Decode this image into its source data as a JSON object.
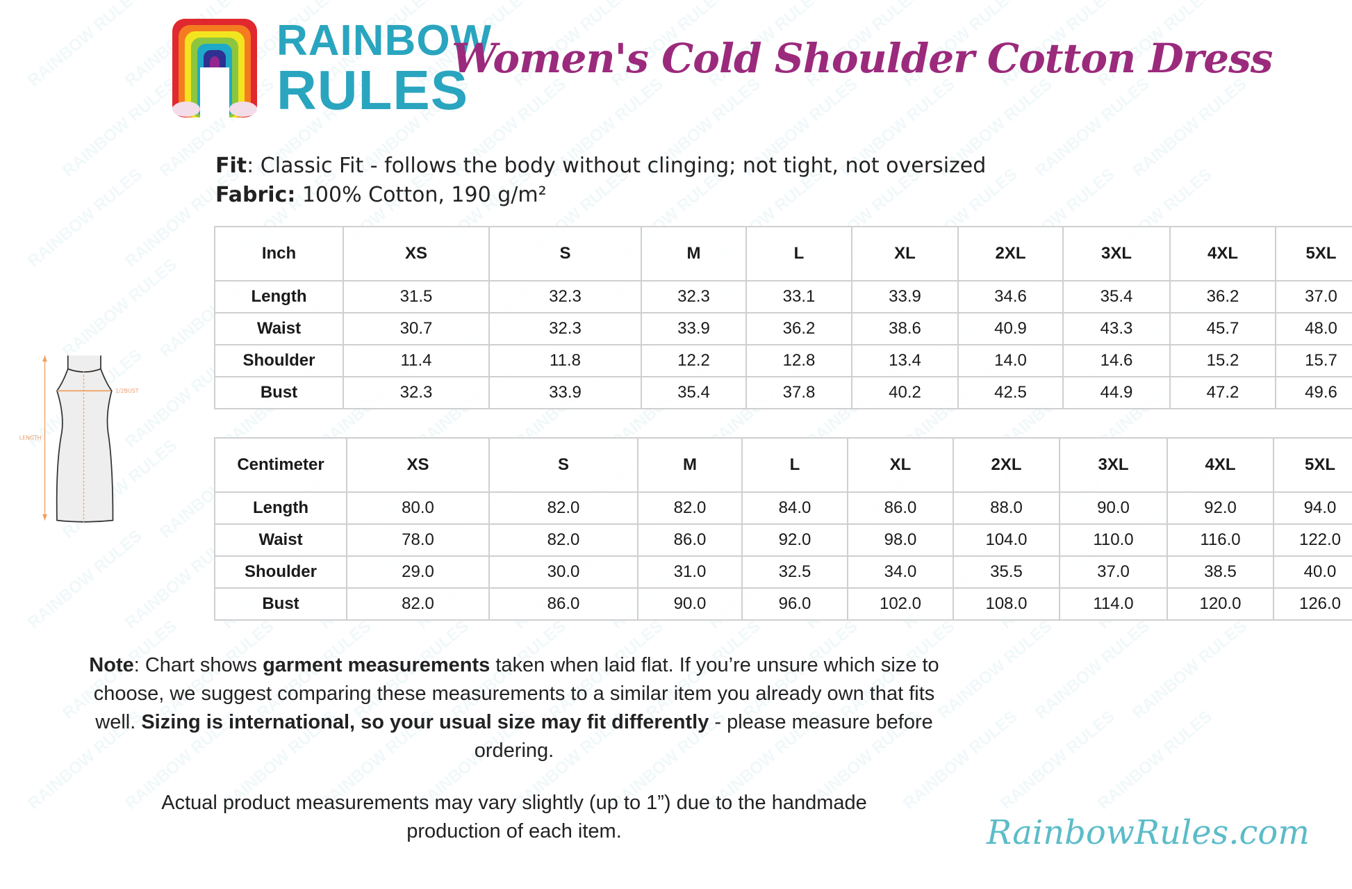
{
  "logo": {
    "text_line1": "RAINBOW",
    "text_line2": "RULES",
    "rainbow_colors": [
      "#e0282e",
      "#f47b20",
      "#f2e51f",
      "#8cc63f",
      "#1fa9c9",
      "#2e3192",
      "#93278f"
    ]
  },
  "title": "Women's Cold Shoulder Cotton Dress",
  "specs": {
    "fit_label": "Fit",
    "fit_value": ": Classic Fit - follows the body without clinging; not tight, not oversized",
    "fabric_label": "Fabric:",
    "fabric_value": " 100% Cotton, 190 g/m²"
  },
  "diagram": {
    "length_label": "LENGTH",
    "bust_label": "1/2BUST"
  },
  "inch_table": {
    "headers": [
      "Inch",
      "XS",
      "S",
      "M",
      "L",
      "XL",
      "2XL",
      "3XL",
      "4XL",
      "5XL"
    ],
    "rows": [
      [
        "Length",
        "31.5",
        "32.3",
        "32.3",
        "33.1",
        "33.9",
        "34.6",
        "35.4",
        "36.2",
        "37.0"
      ],
      [
        "Waist",
        "30.7",
        "32.3",
        "33.9",
        "36.2",
        "38.6",
        "40.9",
        "43.3",
        "45.7",
        "48.0"
      ],
      [
        "Shoulder",
        "11.4",
        "11.8",
        "12.2",
        "12.8",
        "13.4",
        "14.0",
        "14.6",
        "15.2",
        "15.7"
      ],
      [
        "Bust",
        "32.3",
        "33.9",
        "35.4",
        "37.8",
        "40.2",
        "42.5",
        "44.9",
        "47.2",
        "49.6"
      ]
    ]
  },
  "cm_table": {
    "headers": [
      "Centimeter",
      "XS",
      "S",
      "M",
      "L",
      "XL",
      "2XL",
      "3XL",
      "4XL",
      "5XL"
    ],
    "rows": [
      [
        "Length",
        "80.0",
        "82.0",
        "82.0",
        "84.0",
        "86.0",
        "88.0",
        "90.0",
        "92.0",
        "94.0"
      ],
      [
        "Waist",
        "78.0",
        "82.0",
        "86.0",
        "92.0",
        "98.0",
        "104.0",
        "110.0",
        "116.0",
        "122.0"
      ],
      [
        "Shoulder",
        "29.0",
        "30.0",
        "31.0",
        "32.5",
        "34.0",
        "35.5",
        "37.0",
        "38.5",
        "40.0"
      ],
      [
        "Bust",
        "82.0",
        "86.0",
        "90.0",
        "96.0",
        "102.0",
        "108.0",
        "114.0",
        "120.0",
        "126.0"
      ]
    ]
  },
  "note": {
    "label": "Note",
    "part1": ": Chart shows ",
    "bold1": "garment measurements",
    "part2": " taken when laid flat. If you’re unsure which size to choose, we suggest comparing these measurements to a similar item you already own that fits well. ",
    "bold2": "Sizing is international, so your usual size may fit differently",
    "part3": " - please measure before ordering.",
    "disclaimer": "Actual product measurements may vary slightly (up to 1”) due to the handmade production of each item."
  },
  "website": "RainbowRules.com",
  "watermark": "RAINBOW RULES"
}
